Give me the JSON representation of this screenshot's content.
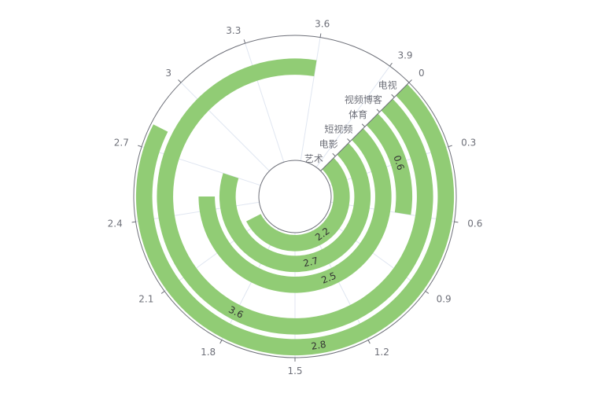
{
  "chart_data": {
    "type": "bar",
    "polar": true,
    "categories": [
      "艺术",
      "电影",
      "短视频",
      "体育",
      "视频博客",
      "电视"
    ],
    "values": [
      2.2,
      2.7,
      2.5,
      0.6,
      3.6,
      2.8
    ],
    "angle_axis": {
      "min": 0,
      "max": 4,
      "ticks": [
        0,
        0.3,
        0.6,
        0.9,
        1.2,
        1.5,
        1.8,
        2.1,
        2.4,
        2.7,
        3,
        3.3,
        3.6,
        3.9
      ],
      "tick_labels": [
        "0",
        "0.3",
        "0.6",
        "0.9",
        "1.2",
        "1.5",
        "1.8",
        "2.1",
        "2.4",
        "2.7",
        "3",
        "3.3",
        "3.6",
        "3.9"
      ],
      "start_angle_deg": 45,
      "clockwise": true
    },
    "data_labels": [
      "2.2",
      "2.7",
      "2.5",
      "0.6",
      "3.6",
      "2.8"
    ],
    "series_color": "#91cc75",
    "axis_color": "#6e7079",
    "split_line_color": "#e0e6f1",
    "title": "",
    "legend": "none"
  }
}
